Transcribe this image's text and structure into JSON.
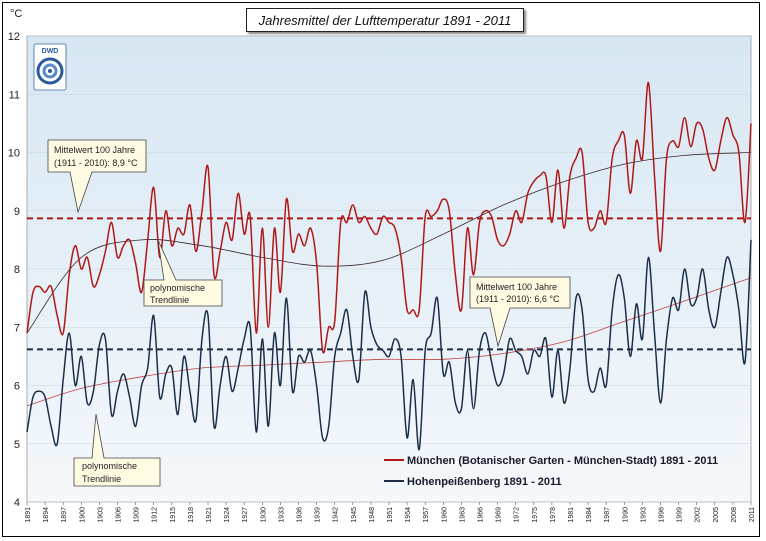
{
  "chart_data": {
    "type": "line",
    "title": "Jahresmittel der Lufttemperatur 1891 - 2011",
    "ylabel": "°C",
    "ylim": [
      4,
      12
    ],
    "yticks": [
      "12",
      "11",
      "10",
      "9",
      "8",
      "7",
      "6",
      "5",
      "4"
    ],
    "xlim": [
      1891,
      2011
    ],
    "xticks": [
      "1891",
      "1894",
      "1897",
      "1900",
      "1903",
      "1906",
      "1909",
      "1912",
      "1915",
      "1918",
      "1921",
      "1924",
      "1927",
      "1930",
      "1933",
      "1936",
      "1939",
      "1942",
      "1945",
      "1948",
      "1951",
      "1954",
      "1957",
      "1960",
      "1963",
      "1966",
      "1969",
      "1972",
      "1975",
      "1978",
      "1981",
      "1984",
      "1987",
      "1990",
      "1993",
      "1996",
      "1999",
      "2002",
      "2005",
      "2008",
      "2011"
    ],
    "logo_text": "DWD",
    "series": [
      {
        "name": "München (Botanischer Garten - München-Stadt) 1891 - 2011",
        "color": "#b01818",
        "mean_value": 8.87,
        "mean_label_line1": "Mittelwert 100 Jahre",
        "mean_label_line2": "(1911 - 2010):  8,9 °C",
        "trend_label_line1": "polynomische",
        "trend_label_line2": "Trendlinie",
        "trend": [
          [
            1891,
            6.9
          ],
          [
            1900,
            8.2
          ],
          [
            1910,
            8.5
          ],
          [
            1920,
            8.4
          ],
          [
            1930,
            8.2
          ],
          [
            1940,
            8.05
          ],
          [
            1950,
            8.15
          ],
          [
            1960,
            8.6
          ],
          [
            1970,
            9.1
          ],
          [
            1980,
            9.5
          ],
          [
            1990,
            9.8
          ],
          [
            2000,
            9.95
          ],
          [
            2011,
            10.0
          ]
        ],
        "values": [
          [
            1891,
            6.9
          ],
          [
            1892,
            7.6
          ],
          [
            1893,
            7.7
          ],
          [
            1894,
            7.6
          ],
          [
            1895,
            7.7
          ],
          [
            1896,
            7.2
          ],
          [
            1897,
            6.9
          ],
          [
            1898,
            7.9
          ],
          [
            1899,
            8.4
          ],
          [
            1900,
            8.0
          ],
          [
            1901,
            8.2
          ],
          [
            1902,
            7.7
          ],
          [
            1903,
            7.9
          ],
          [
            1904,
            8.3
          ],
          [
            1905,
            8.8
          ],
          [
            1906,
            8.2
          ],
          [
            1907,
            8.4
          ],
          [
            1908,
            8.5
          ],
          [
            1909,
            8.1
          ],
          [
            1910,
            7.6
          ],
          [
            1911,
            8.5
          ],
          [
            1912,
            9.4
          ],
          [
            1913,
            8.2
          ],
          [
            1914,
            9.0
          ],
          [
            1915,
            8.4
          ],
          [
            1916,
            8.7
          ],
          [
            1917,
            8.6
          ],
          [
            1918,
            9.1
          ],
          [
            1919,
            8.3
          ],
          [
            1920,
            9.0
          ],
          [
            1921,
            9.75
          ],
          [
            1922,
            7.9
          ],
          [
            1923,
            8.3
          ],
          [
            1924,
            8.8
          ],
          [
            1925,
            8.5
          ],
          [
            1926,
            9.3
          ],
          [
            1927,
            8.6
          ],
          [
            1928,
            8.9
          ],
          [
            1929,
            6.9
          ],
          [
            1930,
            8.7
          ],
          [
            1931,
            7.0
          ],
          [
            1932,
            8.7
          ],
          [
            1933,
            7.6
          ],
          [
            1934,
            9.2
          ],
          [
            1935,
            8.3
          ],
          [
            1936,
            8.6
          ],
          [
            1937,
            8.4
          ],
          [
            1938,
            8.7
          ],
          [
            1939,
            8.1
          ],
          [
            1940,
            6.6
          ],
          [
            1941,
            7.0
          ],
          [
            1942,
            7.1
          ],
          [
            1943,
            8.8
          ],
          [
            1944,
            8.8
          ],
          [
            1945,
            9.1
          ],
          [
            1946,
            8.8
          ],
          [
            1947,
            8.9
          ],
          [
            1948,
            8.7
          ],
          [
            1949,
            8.6
          ],
          [
            1950,
            8.9
          ],
          [
            1951,
            8.8
          ],
          [
            1952,
            8.7
          ],
          [
            1953,
            8.2
          ],
          [
            1954,
            7.3
          ],
          [
            1955,
            7.3
          ],
          [
            1956,
            7.3
          ],
          [
            1957,
            8.9
          ],
          [
            1958,
            8.9
          ],
          [
            1959,
            9.0
          ],
          [
            1960,
            9.2
          ],
          [
            1961,
            9.0
          ],
          [
            1962,
            7.9
          ],
          [
            1963,
            7.3
          ],
          [
            1964,
            8.7
          ],
          [
            1965,
            7.9
          ],
          [
            1966,
            8.8
          ],
          [
            1967,
            9.0
          ],
          [
            1968,
            8.9
          ],
          [
            1969,
            8.5
          ],
          [
            1970,
            8.4
          ],
          [
            1971,
            8.6
          ],
          [
            1972,
            9.0
          ],
          [
            1973,
            8.8
          ],
          [
            1974,
            9.3
          ],
          [
            1975,
            9.5
          ],
          [
            1976,
            9.6
          ],
          [
            1977,
            9.6
          ],
          [
            1978,
            8.8
          ],
          [
            1979,
            9.7
          ],
          [
            1980,
            8.7
          ],
          [
            1981,
            9.6
          ],
          [
            1982,
            9.9
          ],
          [
            1983,
            10.0
          ],
          [
            1984,
            8.8
          ],
          [
            1985,
            8.7
          ],
          [
            1986,
            9.0
          ],
          [
            1987,
            8.8
          ],
          [
            1988,
            9.9
          ],
          [
            1989,
            10.2
          ],
          [
            1990,
            10.3
          ],
          [
            1991,
            9.3
          ],
          [
            1992,
            10.2
          ],
          [
            1993,
            9.9
          ],
          [
            1994,
            11.2
          ],
          [
            1995,
            9.6
          ],
          [
            1996,
            8.3
          ],
          [
            1997,
            9.9
          ],
          [
            1998,
            10.2
          ],
          [
            1999,
            10.1
          ],
          [
            2000,
            10.6
          ],
          [
            2001,
            10.1
          ],
          [
            2002,
            10.5
          ],
          [
            2003,
            10.4
          ],
          [
            2004,
            9.9
          ],
          [
            2005,
            9.7
          ],
          [
            2006,
            10.2
          ],
          [
            2007,
            10.6
          ],
          [
            2008,
            10.3
          ],
          [
            2009,
            10.0
          ],
          [
            2010,
            8.8
          ],
          [
            2011,
            10.5
          ]
        ]
      },
      {
        "name": "Hohenpeißenberg 1891 - 2011",
        "color": "#1c2f48",
        "mean_value": 6.62,
        "mean_label_line1": "Mittelwert 100 Jahre",
        "mean_label_line2": "(1911 - 2010):  6,6 °C",
        "trend_label_line1": "polynomische",
        "trend_label_line2": "Trendlinie",
        "trend": [
          [
            1891,
            5.65
          ],
          [
            1900,
            5.95
          ],
          [
            1910,
            6.15
          ],
          [
            1920,
            6.3
          ],
          [
            1930,
            6.35
          ],
          [
            1940,
            6.4
          ],
          [
            1950,
            6.45
          ],
          [
            1960,
            6.45
          ],
          [
            1970,
            6.55
          ],
          [
            1980,
            6.75
          ],
          [
            1990,
            7.1
          ],
          [
            2000,
            7.45
          ],
          [
            2011,
            7.85
          ]
        ],
        "values": [
          [
            1891,
            5.2
          ],
          [
            1892,
            5.8
          ],
          [
            1893,
            5.9
          ],
          [
            1894,
            5.8
          ],
          [
            1895,
            5.3
          ],
          [
            1896,
            5.0
          ],
          [
            1897,
            6.1
          ],
          [
            1898,
            6.9
          ],
          [
            1899,
            6.0
          ],
          [
            1900,
            6.5
          ],
          [
            1901,
            5.7
          ],
          [
            1902,
            5.9
          ],
          [
            1903,
            6.7
          ],
          [
            1904,
            6.8
          ],
          [
            1905,
            5.5
          ],
          [
            1906,
            5.9
          ],
          [
            1907,
            6.2
          ],
          [
            1908,
            5.8
          ],
          [
            1909,
            5.3
          ],
          [
            1910,
            6.0
          ],
          [
            1911,
            6.3
          ],
          [
            1912,
            7.2
          ],
          [
            1913,
            5.8
          ],
          [
            1914,
            6.2
          ],
          [
            1915,
            6.3
          ],
          [
            1916,
            5.5
          ],
          [
            1917,
            6.5
          ],
          [
            1918,
            5.9
          ],
          [
            1919,
            5.4
          ],
          [
            1920,
            6.8
          ],
          [
            1921,
            7.2
          ],
          [
            1922,
            5.3
          ],
          [
            1923,
            6.0
          ],
          [
            1924,
            6.5
          ],
          [
            1925,
            5.9
          ],
          [
            1926,
            6.3
          ],
          [
            1927,
            6.8
          ],
          [
            1928,
            7.0
          ],
          [
            1929,
            5.2
          ],
          [
            1930,
            6.8
          ],
          [
            1931,
            5.3
          ],
          [
            1932,
            6.9
          ],
          [
            1933,
            6.0
          ],
          [
            1934,
            7.5
          ],
          [
            1935,
            5.9
          ],
          [
            1936,
            6.5
          ],
          [
            1937,
            6.4
          ],
          [
            1938,
            6.6
          ],
          [
            1939,
            6.0
          ],
          [
            1940,
            5.1
          ],
          [
            1941,
            5.3
          ],
          [
            1942,
            6.5
          ],
          [
            1943,
            6.9
          ],
          [
            1944,
            7.3
          ],
          [
            1945,
            6.5
          ],
          [
            1946,
            6.1
          ],
          [
            1947,
            7.6
          ],
          [
            1948,
            7.0
          ],
          [
            1949,
            6.7
          ],
          [
            1950,
            6.6
          ],
          [
            1951,
            6.5
          ],
          [
            1952,
            6.8
          ],
          [
            1953,
            6.5
          ],
          [
            1954,
            5.1
          ],
          [
            1955,
            6.1
          ],
          [
            1956,
            4.9
          ],
          [
            1957,
            6.6
          ],
          [
            1958,
            6.9
          ],
          [
            1959,
            7.5
          ],
          [
            1960,
            6.2
          ],
          [
            1961,
            6.4
          ],
          [
            1962,
            5.7
          ],
          [
            1963,
            5.6
          ],
          [
            1964,
            6.6
          ],
          [
            1965,
            5.6
          ],
          [
            1966,
            6.6
          ],
          [
            1967,
            6.9
          ],
          [
            1968,
            6.4
          ],
          [
            1969,
            6.0
          ],
          [
            1970,
            6.2
          ],
          [
            1971,
            6.8
          ],
          [
            1972,
            6.6
          ],
          [
            1973,
            6.5
          ],
          [
            1974,
            6.2
          ],
          [
            1975,
            6.6
          ],
          [
            1976,
            6.5
          ],
          [
            1977,
            6.8
          ],
          [
            1978,
            5.8
          ],
          [
            1979,
            6.6
          ],
          [
            1980,
            5.7
          ],
          [
            1981,
            6.3
          ],
          [
            1982,
            7.5
          ],
          [
            1983,
            7.3
          ],
          [
            1984,
            6.1
          ],
          [
            1985,
            5.9
          ],
          [
            1986,
            6.3
          ],
          [
            1987,
            6.0
          ],
          [
            1988,
            7.3
          ],
          [
            1989,
            7.9
          ],
          [
            1990,
            7.5
          ],
          [
            1991,
            6.5
          ],
          [
            1992,
            7.4
          ],
          [
            1993,
            6.8
          ],
          [
            1994,
            8.2
          ],
          [
            1995,
            6.9
          ],
          [
            1996,
            5.7
          ],
          [
            1997,
            6.8
          ],
          [
            1998,
            7.5
          ],
          [
            1999,
            7.3
          ],
          [
            2000,
            8.0
          ],
          [
            2001,
            7.4
          ],
          [
            2002,
            7.5
          ],
          [
            2003,
            8.0
          ],
          [
            2004,
            7.3
          ],
          [
            2005,
            7.0
          ],
          [
            2006,
            7.6
          ],
          [
            2007,
            8.2
          ],
          [
            2008,
            7.9
          ],
          [
            2009,
            7.3
          ],
          [
            2010,
            6.4
          ],
          [
            2011,
            8.5
          ]
        ]
      }
    ]
  }
}
